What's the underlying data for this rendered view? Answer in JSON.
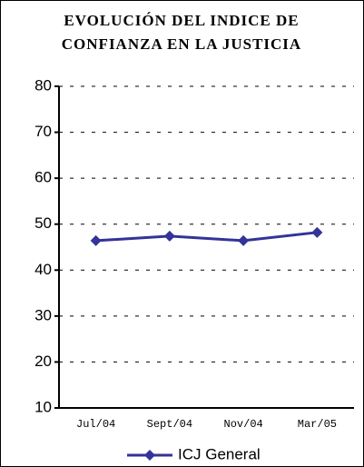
{
  "chart_data": {
    "type": "line",
    "title": "EVOLUCIÓN DEL INDICE DE CONFIANZA EN LA JUSTICIA",
    "categories": [
      "Jul/04",
      "Sept/04",
      "Nov/04",
      "Mar/05"
    ],
    "series": [
      {
        "name": "ICJ General",
        "color": "#333399",
        "values": [
          46.4,
          47.4,
          46.4,
          48.2
        ]
      }
    ],
    "ylim": [
      10,
      80
    ],
    "yticks": [
      10,
      20,
      30,
      40,
      50,
      60,
      70,
      80
    ],
    "grid": true,
    "legend": "bottom"
  }
}
